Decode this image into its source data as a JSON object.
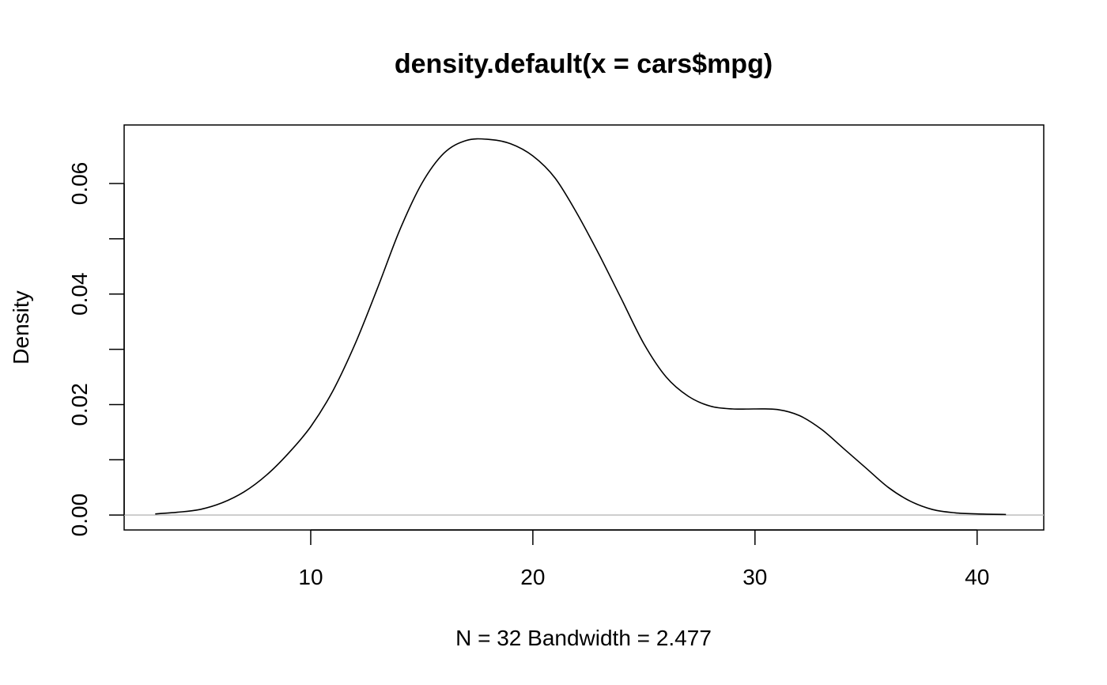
{
  "chart_data": {
    "type": "line",
    "title": "density.default(x = cars$mpg)",
    "xlabel": "N = 32   Bandwidth = 2.477",
    "ylabel": "Density",
    "xlim": [
      1.6,
      43.0
    ],
    "ylim": [
      -0.0027,
      0.0706
    ],
    "x_ticks": [
      10,
      20,
      30,
      40
    ],
    "x_tick_labels": [
      "10",
      "20",
      "30",
      "40"
    ],
    "y_ticks": [
      0.0,
      0.01,
      0.02,
      0.03,
      0.04,
      0.05,
      0.06
    ],
    "y_tick_labels": [
      "0.00",
      "",
      "0.02",
      "",
      "0.04",
      "",
      "0.06"
    ],
    "grid": false,
    "baseline": {
      "y": 0,
      "color": "#bebebe"
    },
    "series": [
      {
        "color": "#000000",
        "x": [
          3.0,
          4.0,
          5.0,
          6.0,
          7.0,
          8.0,
          9.0,
          10.0,
          11.0,
          12.0,
          13.0,
          14.0,
          15.0,
          16.0,
          17.0,
          18.0,
          19.0,
          20.0,
          21.0,
          22.0,
          23.0,
          24.0,
          25.0,
          26.0,
          27.0,
          28.0,
          29.0,
          30.0,
          31.0,
          32.0,
          33.0,
          34.0,
          35.0,
          36.0,
          37.0,
          38.0,
          39.0,
          40.0,
          41.3
        ],
        "y": [
          0.0002,
          0.0005,
          0.001,
          0.0022,
          0.0042,
          0.0072,
          0.0112,
          0.016,
          0.0225,
          0.031,
          0.041,
          0.0515,
          0.06,
          0.0655,
          0.0678,
          0.068,
          0.0672,
          0.065,
          0.061,
          0.0545,
          0.047,
          0.039,
          0.031,
          0.025,
          0.0215,
          0.0197,
          0.0192,
          0.0192,
          0.0191,
          0.018,
          0.0155,
          0.012,
          0.0085,
          0.005,
          0.0025,
          0.001,
          0.0004,
          0.0002,
          0.0001
        ]
      }
    ]
  }
}
